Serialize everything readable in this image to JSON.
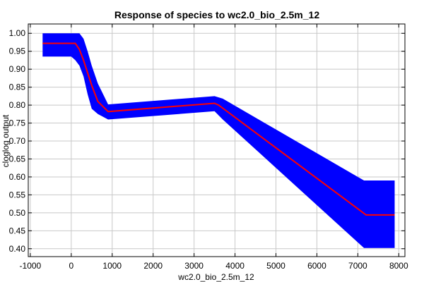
{
  "chart_data": {
    "type": "line",
    "title": "Response of species to wc2.0_bio_2.5m_12",
    "xlabel": "wc2.0_bio_2.5m_12",
    "ylabel": "cloglog output",
    "xlim": [
      -1050,
      8150
    ],
    "ylim": [
      0.378,
      1.026
    ],
    "xticks": [
      -1000,
      0,
      1000,
      2000,
      3000,
      4000,
      5000,
      6000,
      7000,
      8000
    ],
    "yticks": [
      0.4,
      0.45,
      0.5,
      0.55,
      0.6,
      0.65,
      0.7,
      0.75,
      0.8,
      0.85,
      0.9,
      0.95,
      1.0
    ],
    "ytick_labels": [
      "0.40",
      "0.45",
      "0.50",
      "0.55",
      "0.60",
      "0.65",
      "0.70",
      "0.75",
      "0.80",
      "0.85",
      "0.90",
      "0.95",
      "1.00"
    ],
    "grid": true,
    "series": [
      {
        "role": "mean",
        "color": "#ff0000",
        "x": [
          -700,
          100,
          200,
          300,
          400,
          500,
          650,
          900,
          3500,
          3600,
          7200,
          7900
        ],
        "y": [
          0.972,
          0.972,
          0.955,
          0.925,
          0.89,
          0.855,
          0.81,
          0.782,
          0.805,
          0.8,
          0.494,
          0.494
        ]
      },
      {
        "role": "upper",
        "color": "#0000ff",
        "x": [
          -700,
          200,
          300,
          400,
          500,
          650,
          900,
          3500,
          3700,
          7150,
          7900
        ],
        "y": [
          1.0,
          1.0,
          0.985,
          0.95,
          0.91,
          0.86,
          0.802,
          0.825,
          0.818,
          0.59,
          0.59
        ]
      },
      {
        "role": "lower",
        "color": "#0000ff",
        "x": [
          -700,
          0,
          100,
          200,
          300,
          400,
          500,
          650,
          900,
          3500,
          3700,
          7150,
          7900
        ],
        "y": [
          0.935,
          0.935,
          0.925,
          0.91,
          0.88,
          0.83,
          0.79,
          0.775,
          0.76,
          0.783,
          0.76,
          0.402,
          0.402
        ]
      }
    ]
  }
}
